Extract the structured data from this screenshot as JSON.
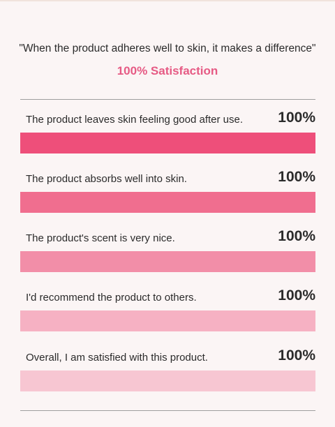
{
  "quote": "\"When the product adheres well to skin, it makes a difference\"",
  "headline": "100% Satisfaction",
  "chart_data": {
    "type": "bar",
    "orientation": "horizontal",
    "categories": [
      "The product leaves skin feeling good after use.",
      "The product absorbs well into skin.",
      "The product's scent is very nice.",
      "I'd recommend the product to others.",
      "Overall, I am satisfied with this product."
    ],
    "values": [
      100,
      100,
      100,
      100,
      100
    ],
    "value_labels": [
      "100%",
      "100%",
      "100%",
      "100%",
      "100%"
    ],
    "xlim": [
      0,
      100
    ],
    "bar_colors": [
      "#ee4f7a",
      "#f06e8f",
      "#f28ea8",
      "#f6b1c3",
      "#f7c6d2"
    ]
  }
}
